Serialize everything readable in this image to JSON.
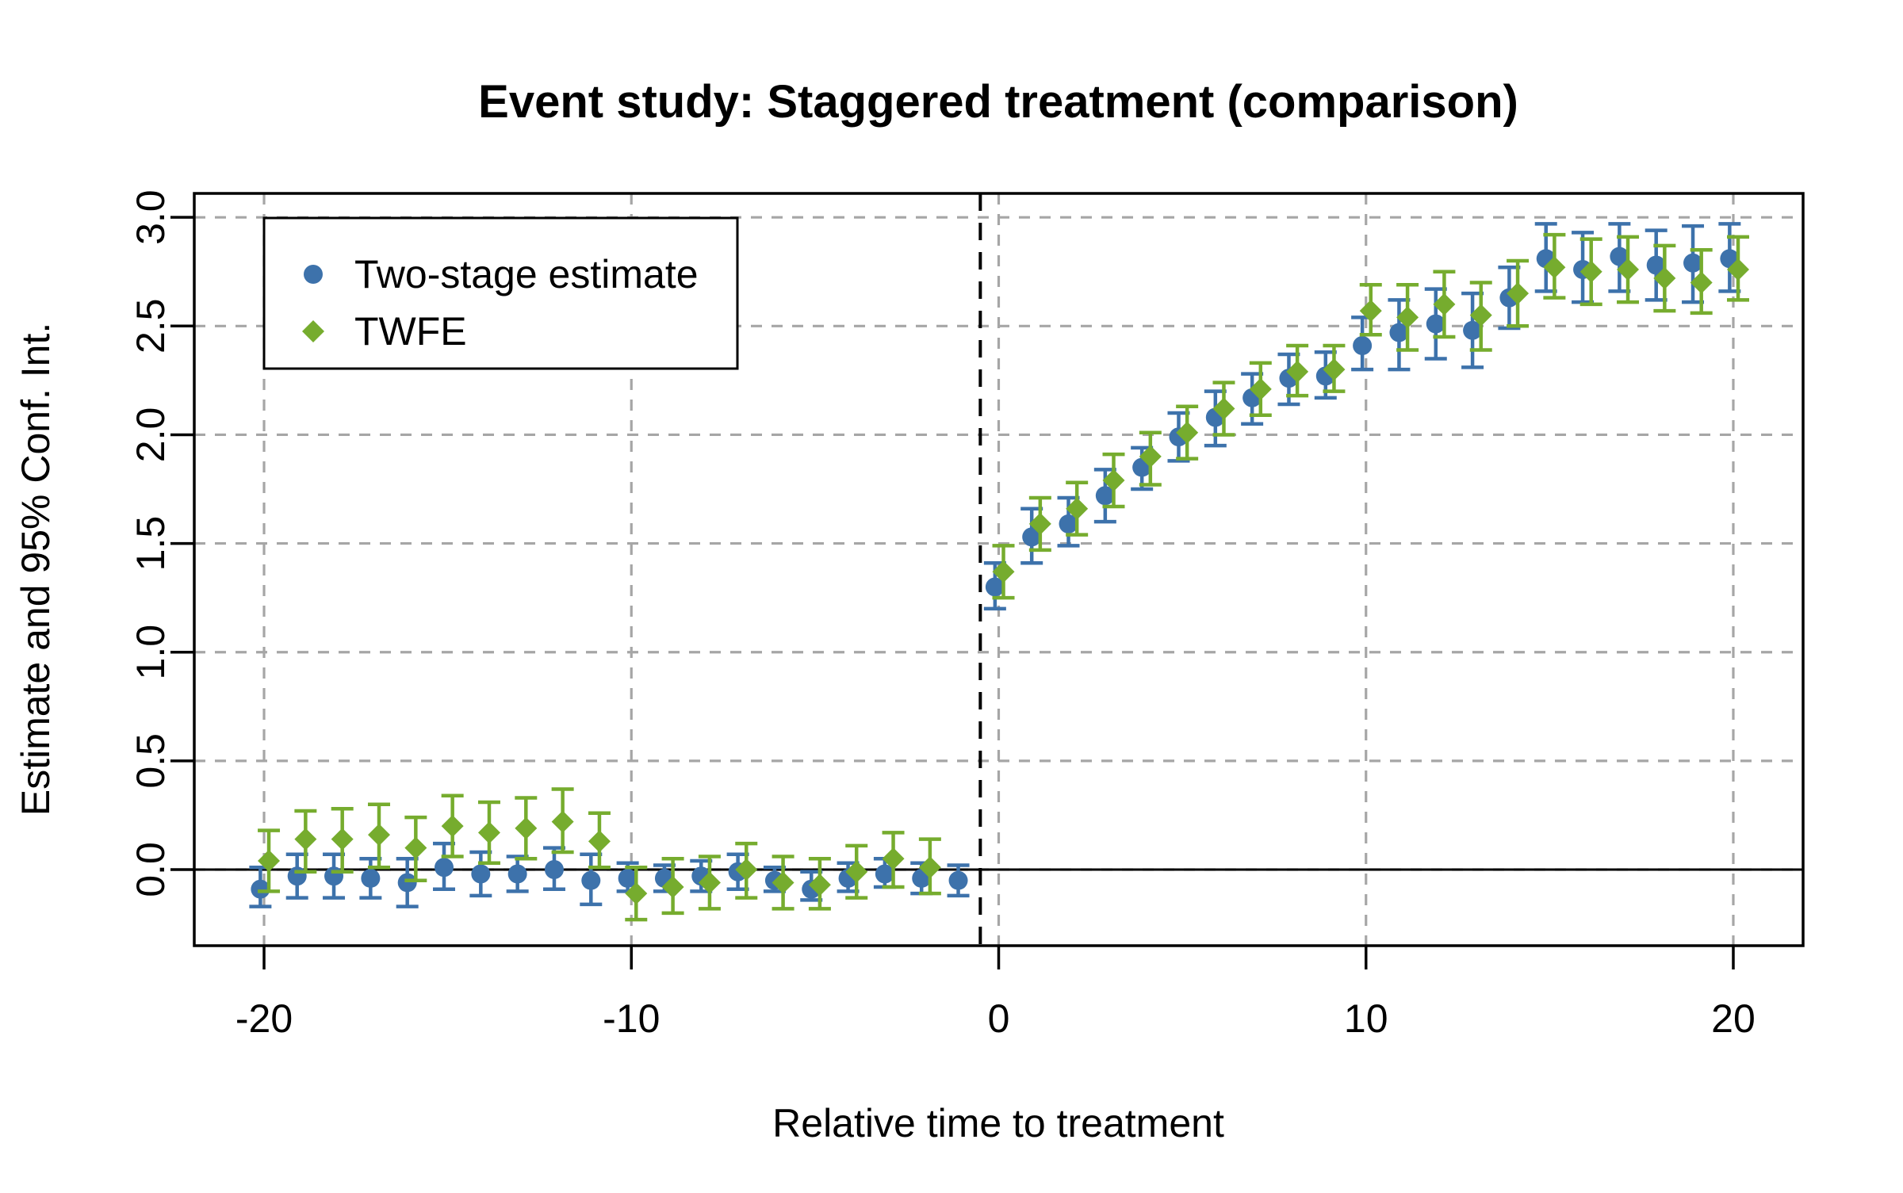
{
  "chart_data": {
    "type": "scatter",
    "title": "Event study: Staggered treatment (comparison)",
    "xlabel": "Relative time to treatment",
    "ylabel": "Estimate and 95% Conf. Int.",
    "x_ticks": [
      -20,
      -10,
      0,
      10,
      20
    ],
    "x_tick_labels": [
      "-20",
      "-10",
      "0",
      "10",
      "20"
    ],
    "y_ticks": [
      0.0,
      0.5,
      1.0,
      1.5,
      2.0,
      2.5,
      3.0
    ],
    "y_tick_labels": [
      "0.0",
      "0.5",
      "1.0",
      "1.5",
      "2.0",
      "2.5",
      "3.0"
    ],
    "xlim": [
      -21.9,
      21.9
    ],
    "ylim": [
      -0.35,
      3.11
    ],
    "grid": true,
    "legend_position": "top-left",
    "reference_lines": {
      "horizontal_zero_line_y": 0,
      "vertical_dashed_line_x": -0.5
    },
    "colors": {
      "grid": "#A6A6A6",
      "axis": "#000000",
      "background": "#FFFFFF",
      "two_stage": "#3D72AB",
      "twfe": "#76AC2E"
    },
    "series": [
      {
        "name": "Two-stage estimate",
        "marker": "circle",
        "color": "#3D72AB",
        "x_offset": -0.1,
        "points": [
          {
            "t": -20,
            "est": -0.09,
            "lo": -0.17,
            "hi": 0.01
          },
          {
            "t": -19,
            "est": -0.03,
            "lo": -0.13,
            "hi": 0.07
          },
          {
            "t": -18,
            "est": -0.03,
            "lo": -0.13,
            "hi": 0.07
          },
          {
            "t": -17,
            "est": -0.04,
            "lo": -0.13,
            "hi": 0.05
          },
          {
            "t": -16,
            "est": -0.06,
            "lo": -0.17,
            "hi": 0.05
          },
          {
            "t": -15,
            "est": 0.01,
            "lo": -0.09,
            "hi": 0.12
          },
          {
            "t": -14,
            "est": -0.02,
            "lo": -0.12,
            "hi": 0.08
          },
          {
            "t": -13,
            "est": -0.02,
            "lo": -0.1,
            "hi": 0.06
          },
          {
            "t": -12,
            "est": 0.0,
            "lo": -0.09,
            "hi": 0.1
          },
          {
            "t": -11,
            "est": -0.05,
            "lo": -0.16,
            "hi": 0.07
          },
          {
            "t": -10,
            "est": -0.04,
            "lo": -0.1,
            "hi": 0.03
          },
          {
            "t": -9,
            "est": -0.04,
            "lo": -0.1,
            "hi": 0.02
          },
          {
            "t": -8,
            "est": -0.03,
            "lo": -0.1,
            "hi": 0.04
          },
          {
            "t": -7,
            "est": -0.01,
            "lo": -0.09,
            "hi": 0.07
          },
          {
            "t": -6,
            "est": -0.05,
            "lo": -0.1,
            "hi": 0.01
          },
          {
            "t": -5,
            "est": -0.09,
            "lo": -0.14,
            "hi": -0.01
          },
          {
            "t": -4,
            "est": -0.04,
            "lo": -0.1,
            "hi": 0.03
          },
          {
            "t": -3,
            "est": -0.02,
            "lo": -0.08,
            "hi": 0.05
          },
          {
            "t": -2,
            "est": -0.04,
            "lo": -0.11,
            "hi": 0.03
          },
          {
            "t": -1,
            "est": -0.05,
            "lo": -0.12,
            "hi": 0.02
          },
          {
            "t": 0,
            "est": 1.3,
            "lo": 1.2,
            "hi": 1.41
          },
          {
            "t": 1,
            "est": 1.53,
            "lo": 1.41,
            "hi": 1.66
          },
          {
            "t": 2,
            "est": 1.59,
            "lo": 1.49,
            "hi": 1.71
          },
          {
            "t": 3,
            "est": 1.72,
            "lo": 1.6,
            "hi": 1.84
          },
          {
            "t": 4,
            "est": 1.85,
            "lo": 1.75,
            "hi": 1.94
          },
          {
            "t": 5,
            "est": 1.99,
            "lo": 1.88,
            "hi": 2.1
          },
          {
            "t": 6,
            "est": 2.08,
            "lo": 1.95,
            "hi": 2.2
          },
          {
            "t": 7,
            "est": 2.17,
            "lo": 2.05,
            "hi": 2.28
          },
          {
            "t": 8,
            "est": 2.26,
            "lo": 2.14,
            "hi": 2.37
          },
          {
            "t": 9,
            "est": 2.27,
            "lo": 2.17,
            "hi": 2.38
          },
          {
            "t": 10,
            "est": 2.41,
            "lo": 2.3,
            "hi": 2.54
          },
          {
            "t": 11,
            "est": 2.47,
            "lo": 2.3,
            "hi": 2.62
          },
          {
            "t": 12,
            "est": 2.51,
            "lo": 2.35,
            "hi": 2.67
          },
          {
            "t": 13,
            "est": 2.48,
            "lo": 2.31,
            "hi": 2.65
          },
          {
            "t": 14,
            "est": 2.63,
            "lo": 2.49,
            "hi": 2.77
          },
          {
            "t": 15,
            "est": 2.81,
            "lo": 2.66,
            "hi": 2.97
          },
          {
            "t": 16,
            "est": 2.76,
            "lo": 2.61,
            "hi": 2.93
          },
          {
            "t": 17,
            "est": 2.82,
            "lo": 2.66,
            "hi": 2.97
          },
          {
            "t": 18,
            "est": 2.78,
            "lo": 2.62,
            "hi": 2.94
          },
          {
            "t": 19,
            "est": 2.79,
            "lo": 2.61,
            "hi": 2.96
          },
          {
            "t": 20,
            "est": 2.81,
            "lo": 2.66,
            "hi": 2.97
          }
        ]
      },
      {
        "name": "TWFE",
        "marker": "diamond",
        "color": "#76AC2E",
        "x_offset": 0.13,
        "points": [
          {
            "t": -20,
            "est": 0.04,
            "lo": -0.1,
            "hi": 0.18
          },
          {
            "t": -19,
            "est": 0.14,
            "lo": -0.01,
            "hi": 0.27
          },
          {
            "t": -18,
            "est": 0.14,
            "lo": -0.01,
            "hi": 0.28
          },
          {
            "t": -17,
            "est": 0.16,
            "lo": 0.01,
            "hi": 0.3
          },
          {
            "t": -16,
            "est": 0.1,
            "lo": -0.05,
            "hi": 0.24
          },
          {
            "t": -15,
            "est": 0.2,
            "lo": 0.06,
            "hi": 0.34
          },
          {
            "t": -14,
            "est": 0.17,
            "lo": 0.03,
            "hi": 0.31
          },
          {
            "t": -13,
            "est": 0.19,
            "lo": 0.05,
            "hi": 0.33
          },
          {
            "t": -12,
            "est": 0.22,
            "lo": 0.08,
            "hi": 0.37
          },
          {
            "t": -11,
            "est": 0.13,
            "lo": 0.01,
            "hi": 0.26
          },
          {
            "t": -10,
            "est": -0.11,
            "lo": -0.23,
            "hi": 0.01
          },
          {
            "t": -9,
            "est": -0.08,
            "lo": -0.2,
            "hi": 0.05
          },
          {
            "t": -8,
            "est": -0.06,
            "lo": -0.18,
            "hi": 0.06
          },
          {
            "t": -7,
            "est": 0.0,
            "lo": -0.13,
            "hi": 0.12
          },
          {
            "t": -6,
            "est": -0.06,
            "lo": -0.18,
            "hi": 0.06
          },
          {
            "t": -5,
            "est": -0.07,
            "lo": -0.18,
            "hi": 0.05
          },
          {
            "t": -4,
            "est": -0.01,
            "lo": -0.13,
            "hi": 0.11
          },
          {
            "t": -3,
            "est": 0.05,
            "lo": -0.08,
            "hi": 0.17
          },
          {
            "t": -2,
            "est": 0.01,
            "lo": -0.11,
            "hi": 0.14
          },
          {
            "t": 0,
            "est": 1.37,
            "lo": 1.25,
            "hi": 1.49
          },
          {
            "t": 1,
            "est": 1.59,
            "lo": 1.47,
            "hi": 1.71
          },
          {
            "t": 2,
            "est": 1.66,
            "lo": 1.54,
            "hi": 1.78
          },
          {
            "t": 3,
            "est": 1.79,
            "lo": 1.67,
            "hi": 1.91
          },
          {
            "t": 4,
            "est": 1.9,
            "lo": 1.77,
            "hi": 2.01
          },
          {
            "t": 5,
            "est": 2.01,
            "lo": 1.89,
            "hi": 2.13
          },
          {
            "t": 6,
            "est": 2.12,
            "lo": 2.0,
            "hi": 2.24
          },
          {
            "t": 7,
            "est": 2.21,
            "lo": 2.09,
            "hi": 2.33
          },
          {
            "t": 8,
            "est": 2.29,
            "lo": 2.18,
            "hi": 2.41
          },
          {
            "t": 9,
            "est": 2.3,
            "lo": 2.2,
            "hi": 2.41
          },
          {
            "t": 10,
            "est": 2.57,
            "lo": 2.46,
            "hi": 2.69
          },
          {
            "t": 11,
            "est": 2.54,
            "lo": 2.39,
            "hi": 2.69
          },
          {
            "t": 12,
            "est": 2.6,
            "lo": 2.45,
            "hi": 2.75
          },
          {
            "t": 13,
            "est": 2.55,
            "lo": 2.39,
            "hi": 2.7
          },
          {
            "t": 14,
            "est": 2.65,
            "lo": 2.5,
            "hi": 2.8
          },
          {
            "t": 15,
            "est": 2.77,
            "lo": 2.63,
            "hi": 2.92
          },
          {
            "t": 16,
            "est": 2.75,
            "lo": 2.6,
            "hi": 2.9
          },
          {
            "t": 17,
            "est": 2.76,
            "lo": 2.61,
            "hi": 2.91
          },
          {
            "t": 18,
            "est": 2.72,
            "lo": 2.57,
            "hi": 2.87
          },
          {
            "t": 19,
            "est": 2.7,
            "lo": 2.56,
            "hi": 2.85
          },
          {
            "t": 20,
            "est": 2.76,
            "lo": 2.62,
            "hi": 2.91
          }
        ]
      }
    ]
  }
}
